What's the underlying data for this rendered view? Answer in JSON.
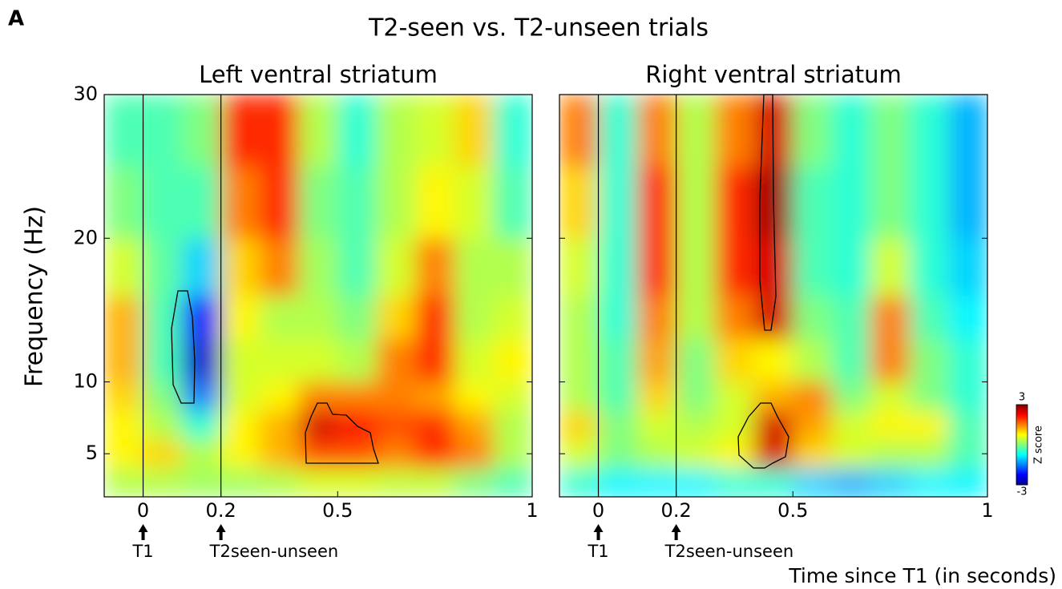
{
  "figure": {
    "panel_label": "A",
    "title": "T2-seen vs. T2-unseen trials",
    "ylabel": "Frequency (Hz)",
    "xlabel": "Time since T1 (in seconds)"
  },
  "chart_data": [
    {
      "type": "heatmap",
      "title": "Left ventral striatum",
      "xlim": [
        -0.1,
        1
      ],
      "ylim": [
        2,
        30
      ],
      "xticks": [
        0,
        0.2,
        0.5,
        1
      ],
      "yticks": [
        5,
        10,
        20,
        30
      ],
      "x_bins": [
        -0.1,
        0,
        0.1,
        0.2,
        0.3,
        0.4,
        0.5,
        0.6,
        0.7,
        0.8,
        0.9,
        1.0
      ],
      "y_bins": [
        2,
        4,
        6,
        8,
        10,
        13,
        16,
        20,
        25,
        30
      ],
      "clim": [
        -3,
        3
      ],
      "z": [
        [
          0.3,
          0.3,
          0.2,
          0.2,
          0.3,
          0.5,
          0.5,
          0.4,
          0.4,
          0,
          -0.3
        ],
        [
          0.8,
          1.0,
          0.3,
          0.8,
          1.2,
          1.8,
          1.8,
          1.5,
          2.0,
          1.5,
          0.3
        ],
        [
          0.8,
          0.3,
          -0.5,
          0.8,
          1.2,
          2.5,
          2.2,
          1.8,
          2.0,
          1.3,
          0.3
        ],
        [
          1.0,
          0,
          -1.5,
          0.5,
          0.8,
          1.5,
          1.5,
          1.5,
          1.3,
          0.8,
          0.5
        ],
        [
          1.2,
          -0.3,
          -2.5,
          0.5,
          0.5,
          0.5,
          0.3,
          1.5,
          2.0,
          0.5,
          0.8
        ],
        [
          1.2,
          -0.3,
          -2.2,
          0.8,
          0.3,
          0.3,
          0,
          1.0,
          2.0,
          0.3,
          0.5
        ],
        [
          0.5,
          -0.2,
          -1,
          1,
          1.5,
          0.2,
          -0.3,
          0.5,
          1.5,
          0.3,
          0.3
        ],
        [
          0,
          -0.3,
          -0.3,
          1.5,
          2.0,
          0,
          -0.3,
          0.3,
          0.8,
          0.5,
          -0.3
        ],
        [
          -0.3,
          -0.3,
          0,
          2.0,
          2.0,
          0.3,
          -0.5,
          0.3,
          0.5,
          1.0,
          -0.5
        ]
      ],
      "annotations": [
        {
          "x": 0,
          "label": "T1"
        },
        {
          "x": 0.2,
          "label": "T2seen-unseen"
        }
      ]
    },
    {
      "type": "heatmap",
      "title": "Right ventral striatum",
      "xlim": [
        -0.1,
        1
      ],
      "ylim": [
        2,
        30
      ],
      "xticks": [
        0,
        0.2,
        0.5,
        1
      ],
      "yticks": [
        5,
        10,
        20,
        30
      ],
      "x_bins": [
        -0.1,
        0,
        0.1,
        0.2,
        0.3,
        0.4,
        0.5,
        0.6,
        0.7,
        0.8,
        0.9,
        1.0
      ],
      "y_bins": [
        2,
        4,
        6,
        8,
        10,
        13,
        16,
        20,
        25,
        30
      ],
      "clim": [
        -3,
        3
      ],
      "cticks": [
        -3,
        3
      ],
      "colorbar_label": "Z score",
      "z": [
        [
          -0.5,
          -0.8,
          -0.8,
          -0.8,
          -0.5,
          -0.5,
          -1,
          -1.2,
          -1,
          -0.8,
          -0.8
        ],
        [
          0.5,
          0,
          0.3,
          0.5,
          0.8,
          2.5,
          1.0,
          0.5,
          0.3,
          0.3,
          -0.3
        ],
        [
          1.0,
          0,
          0.5,
          0.3,
          0.5,
          2.5,
          1.3,
          0.5,
          0.8,
          0.8,
          -0.3
        ],
        [
          0.3,
          -0.3,
          1.0,
          0,
          0.5,
          1.2,
          1.5,
          0,
          0.5,
          0,
          -0.5
        ],
        [
          0.3,
          -0.3,
          1.3,
          0,
          1.0,
          0.8,
          0.3,
          -0.3,
          1.5,
          0,
          -0.5
        ],
        [
          0.3,
          -0.5,
          1.5,
          0.3,
          1.5,
          2.5,
          0,
          -0.3,
          1.5,
          -0.3,
          -0.8
        ],
        [
          0.5,
          -0.5,
          2.0,
          0.3,
          2.0,
          2.5,
          -0.3,
          -0.5,
          0.5,
          -0.5,
          -1.0
        ],
        [
          1.0,
          -0.5,
          2.0,
          0.3,
          2.0,
          2.8,
          -0.3,
          -0.5,
          0,
          -0.5,
          -1.2
        ],
        [
          1.5,
          -0.5,
          1.5,
          0.3,
          1.5,
          2.5,
          0,
          -0.5,
          0,
          -0.5,
          -1.2
        ]
      ],
      "annotations": [
        {
          "x": 0,
          "label": "T1"
        },
        {
          "x": 0.2,
          "label": "T2seen-unseen"
        }
      ]
    }
  ]
}
